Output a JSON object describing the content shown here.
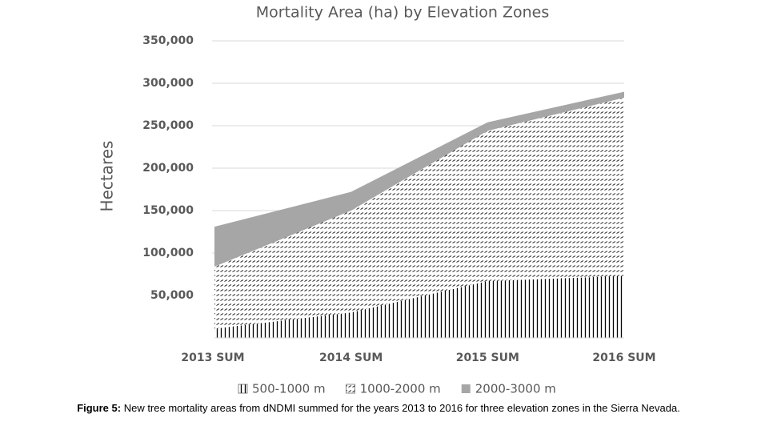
{
  "chart_data": {
    "type": "stacked-area",
    "title": "Mortality Area (ha) by Elevation Zones",
    "y_label": "Hectares",
    "categories": [
      "2013 SUM",
      "2014 SUM",
      "2015 SUM",
      "2016 SUM"
    ],
    "series": [
      {
        "name": "500-1000 m",
        "color": "#000000",
        "pattern": "vertical-lines",
        "values": [
          11000,
          30000,
          67000,
          73000
        ]
      },
      {
        "name": "1000-2000 m",
        "color": "#000000",
        "pattern": "diagonal-dashes",
        "values": [
          73000,
          120000,
          177000,
          210000
        ]
      },
      {
        "name": "2000-3000 m",
        "color": "#a6a6a6",
        "pattern": "solid",
        "values": [
          47000,
          22000,
          10000,
          7000
        ]
      }
    ],
    "ylim": [
      0,
      350000
    ],
    "yticks": [
      {
        "value": 50000,
        "label": "50,000"
      },
      {
        "value": 100000,
        "label": "100,000"
      },
      {
        "value": 150000,
        "label": "150,000"
      },
      {
        "value": 200000,
        "label": "200,000"
      },
      {
        "value": 250000,
        "label": "250,000"
      },
      {
        "value": 300000,
        "label": "300,000"
      },
      {
        "value": 350000,
        "label": "350,000"
      }
    ],
    "grid": true,
    "legend": "bottom"
  },
  "caption": {
    "label": "Figure 5:",
    "text": " New tree mortality areas from dNDMI summed for the years 2013 to 2016 for three elevation zones in the Sierra Nevada."
  }
}
